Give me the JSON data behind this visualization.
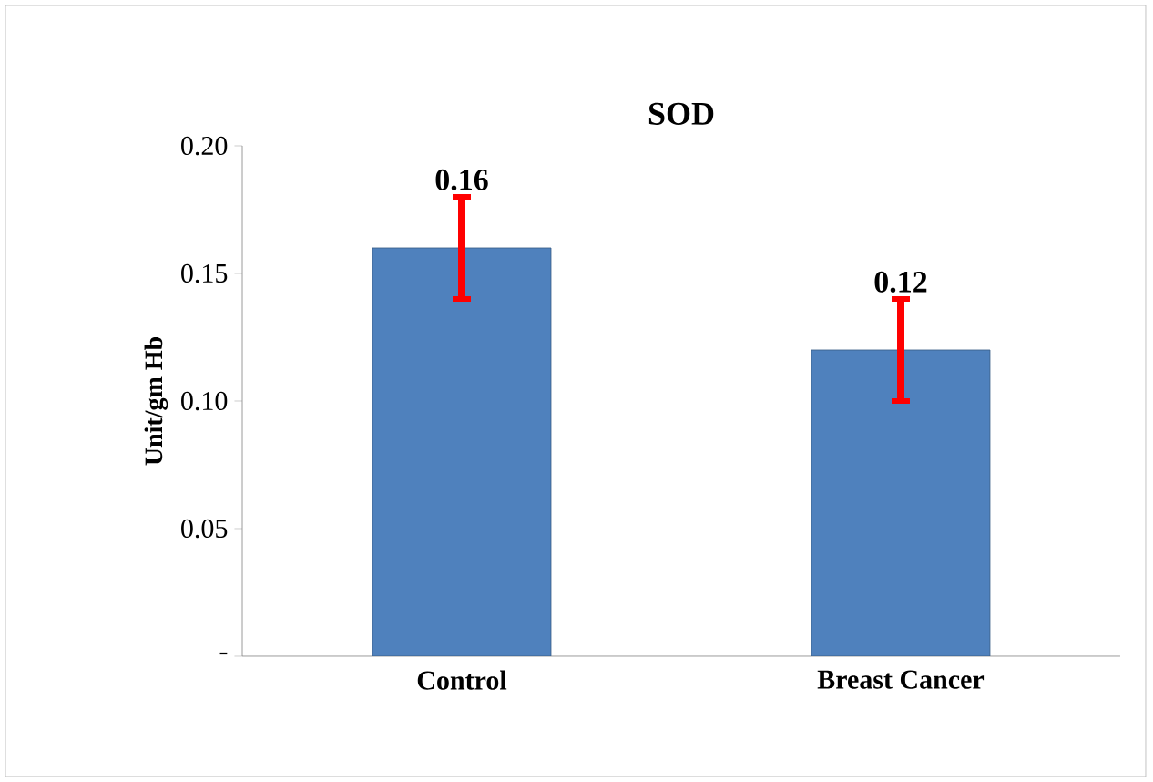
{
  "chart_data": {
    "type": "bar",
    "title": "SOD",
    "ylabel": "Unit/gm Hb",
    "categories": [
      "Control",
      "Breast Cancer"
    ],
    "values": [
      0.16,
      0.12
    ],
    "errors": [
      0.02,
      0.02
    ],
    "color": "#4f81bd",
    "ylim": [
      0,
      0.2
    ],
    "yticks": [
      {
        "value": 0,
        "label": "-"
      },
      0.05,
      {
        "value": 0.1,
        "label": "0.10"
      },
      0.15,
      {
        "value": 0.2,
        "label": "0.20"
      }
    ],
    "data_labels": true,
    "grid": false
  }
}
